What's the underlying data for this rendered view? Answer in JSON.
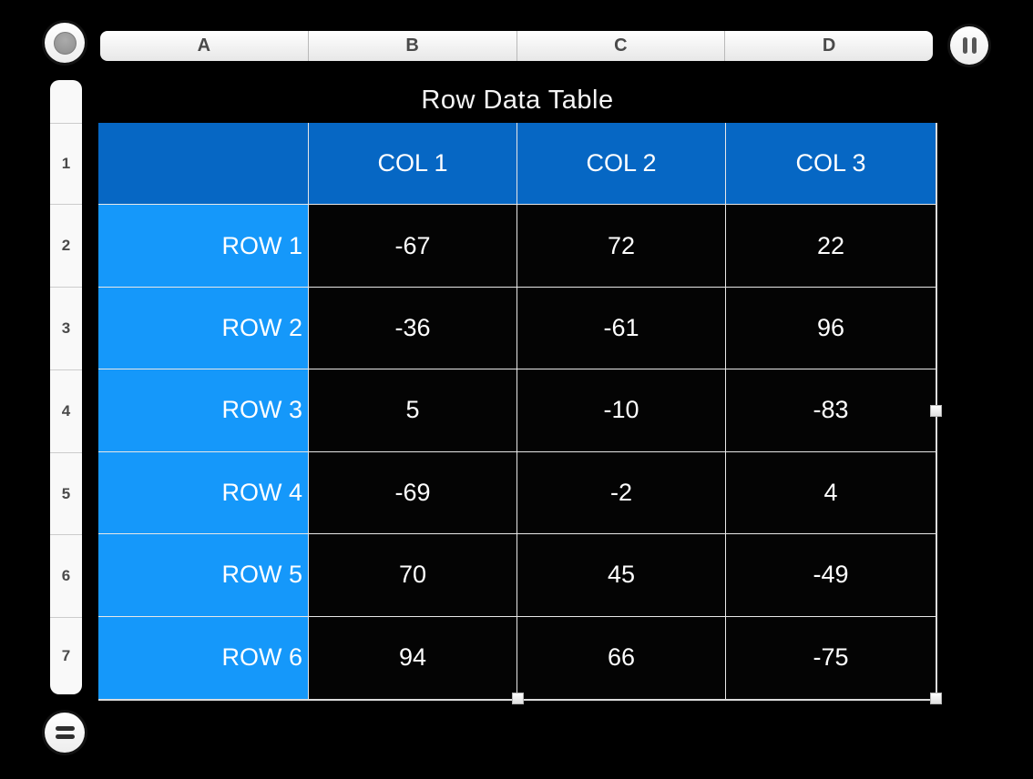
{
  "window": {
    "background": "#000000"
  },
  "top_bar": {
    "column_headers": [
      "A",
      "B",
      "C",
      "D"
    ]
  },
  "row_bar": {
    "row_numbers": [
      "",
      "1",
      "2",
      "3",
      "4",
      "5",
      "6",
      "7"
    ]
  },
  "controls": {
    "record_button_icon": "record-dot-icon",
    "pause_button_icon": "pause-icon",
    "formula_button_icon": "equals-icon"
  },
  "table": {
    "title": "Row Data Table",
    "column_headers": [
      "",
      "COL 1",
      "COL 2",
      "COL 3"
    ],
    "rows": [
      {
        "label": "ROW 1",
        "values": [
          -67,
          72,
          22
        ]
      },
      {
        "label": "ROW 2",
        "values": [
          -36,
          -61,
          96
        ]
      },
      {
        "label": "ROW 3",
        "values": [
          5,
          -10,
          -83
        ]
      },
      {
        "label": "ROW 4",
        "values": [
          -69,
          -2,
          4
        ]
      },
      {
        "label": "ROW 5",
        "values": [
          70,
          45,
          -49
        ]
      },
      {
        "label": "ROW 6",
        "values": [
          94,
          66,
          -75
        ]
      }
    ],
    "selection": {
      "handles": [
        "right-middle",
        "bottom-middle",
        "bottom-right"
      ]
    }
  },
  "colors": {
    "header_blue": "#0667C4",
    "row_label_blue": "#1598FA",
    "cell_background": "#040404",
    "cell_text": "#FFFFFF",
    "grid_line": "#E8E8E8"
  }
}
